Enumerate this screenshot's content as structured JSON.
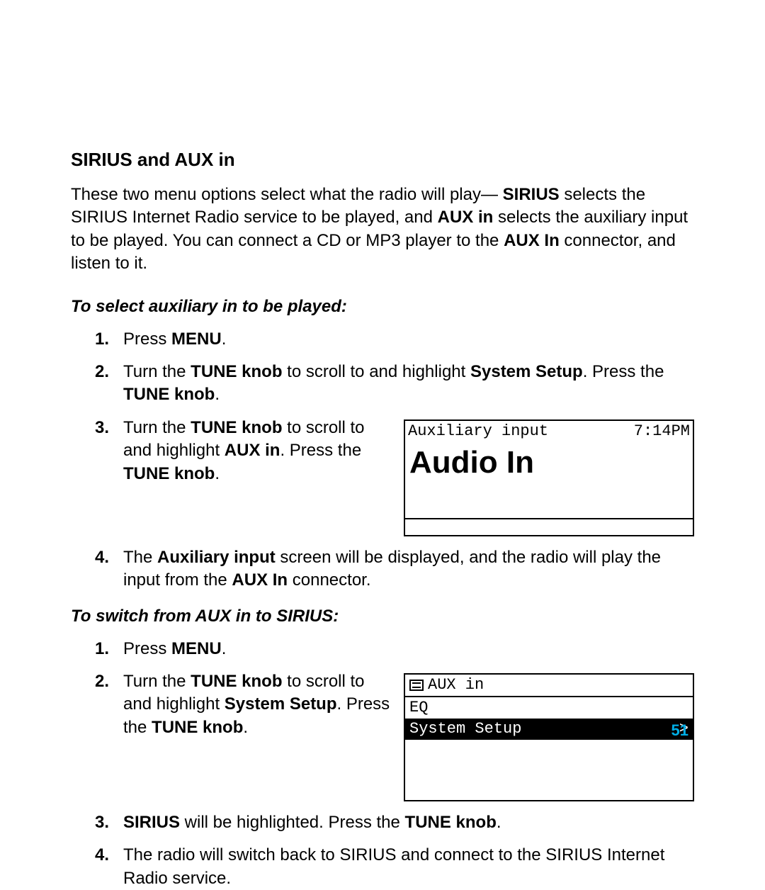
{
  "heading": "SIRIUS and AUX in",
  "intro": {
    "t1": "These two menu options select what the radio will play— ",
    "b1": "SIRIUS",
    "t2": " selects the SIRIUS Internet Radio service to be played, and ",
    "b2": "AUX in",
    "t3": " selects the auxiliary input to be played. You can connect a CD or MP3 player to the ",
    "b3": "AUX In",
    "t4": " connector, and listen to it."
  },
  "sub1": "To select auxiliary in to be played:",
  "list1": {
    "i1": {
      "t1": "Press ",
      "b1": "MENU",
      "t2": "."
    },
    "i2": {
      "t1": "Turn the ",
      "b1": "TUNE knob",
      "t2": " to scroll to and highlight ",
      "b2": "System Setup",
      "t3": ". Press the ",
      "b3": "TUNE knob",
      "t4": "."
    },
    "i3": {
      "t1": "Turn the ",
      "b1": "TUNE knob",
      "t2": " to scroll to and highlight ",
      "b2": "AUX in",
      "t3": ". Press the ",
      "b3": "TUNE knob",
      "t4": "."
    },
    "i4": {
      "t1": "The ",
      "b1": "Auxiliary input",
      "t2": " screen will be displayed, and the radio will play the input from the ",
      "b2": "AUX In",
      "t3": " connector."
    }
  },
  "sub2": "To switch from AUX in to SIRIUS:",
  "list2": {
    "i1": {
      "t1": "Press ",
      "b1": "MENU",
      "t2": "."
    },
    "i2": {
      "t1": "Turn the ",
      "b1": "TUNE knob",
      "t2": " to scroll to and highlight ",
      "b2": "System Setup",
      "t3": ". Press the ",
      "b3": "TUNE knob",
      "t4": "."
    },
    "i3": {
      "b1": "SIRIUS",
      "t1": " will be highlighted. Press the ",
      "b2": "TUNE knob",
      "t2": "."
    },
    "i4": {
      "t1": "The radio will switch back to SIRIUS and connect to the SIRIUS Internet Radio service."
    }
  },
  "screen1": {
    "title": "Auxiliary input",
    "time": "7:14PM",
    "big": "Audio In"
  },
  "screen2": {
    "header": "AUX in",
    "row1": "EQ",
    "row2": "System Setup",
    "row2_arrow": ">"
  },
  "pagenum": "51",
  "colors": {
    "accent": "#00aee6",
    "text": "#000000",
    "bg": "#ffffff"
  }
}
